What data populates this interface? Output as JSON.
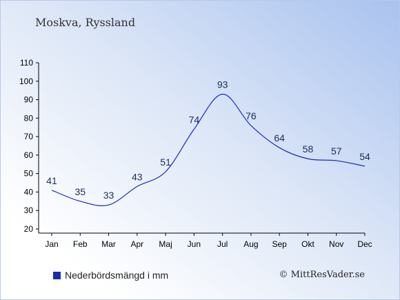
{
  "header": {
    "title": "Moskva, Ryssland"
  },
  "legend": {
    "label": "Nederbördsmängd i mm",
    "color": "#1a2bb0"
  },
  "footer": {
    "copyright": "© MittResVader.se"
  },
  "chart_data": {
    "type": "line",
    "title": "Moskva, Ryssland",
    "xlabel": "",
    "ylabel": "",
    "categories": [
      "Jan",
      "Feb",
      "Mar",
      "Apr",
      "Maj",
      "Jun",
      "Jul",
      "Aug",
      "Sep",
      "Okt",
      "Nov",
      "Dec"
    ],
    "series": [
      {
        "name": "Nederbördsmängd i mm",
        "values": [
          41,
          35,
          33,
          43,
          51,
          74,
          93,
          76,
          64,
          58,
          57,
          54
        ],
        "color": "#1a2bb0"
      }
    ],
    "ylim": [
      20,
      110
    ],
    "yticks": [
      20,
      30,
      40,
      50,
      60,
      70,
      80,
      90,
      100,
      110
    ],
    "grid": false,
    "legend_position": "bottom-left",
    "data_labels": true
  }
}
